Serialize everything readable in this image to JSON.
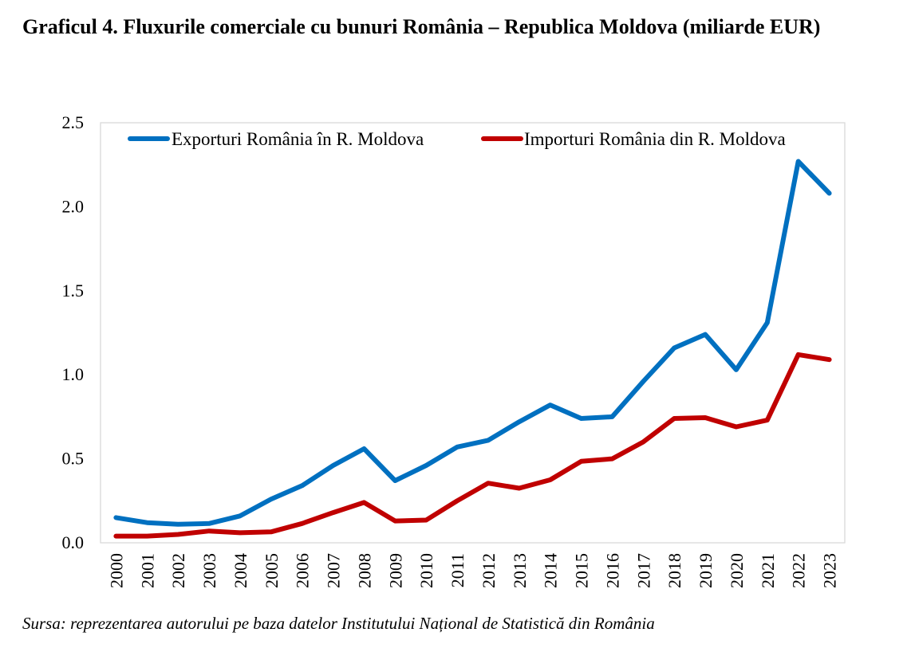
{
  "title": "Graficul 4. Fluxurile comerciale cu bunuri România – Republica Moldova (miliarde EUR)",
  "source": "Sursa: reprezentarea autorului pe baza datelor Institutului Național de Statistică din România",
  "chart_data": {
    "type": "line",
    "x": [
      "2000",
      "2001",
      "2002",
      "2003",
      "2004",
      "2005",
      "2006",
      "2007",
      "2008",
      "2009",
      "2010",
      "2011",
      "2012",
      "2013",
      "2014",
      "2015",
      "2016",
      "2017",
      "2018",
      "2019",
      "2020",
      "2021",
      "2022",
      "2023"
    ],
    "y_ticks": [
      "0.0",
      "0.5",
      "1.0",
      "1.5",
      "2.0",
      "2.5"
    ],
    "ylim": [
      0,
      2.5
    ],
    "grid": false,
    "legend_position": "top",
    "series": [
      {
        "name": "Exporturi România în R. Moldova",
        "color": "#0070C0",
        "values": [
          0.15,
          0.12,
          0.11,
          0.115,
          0.16,
          0.26,
          0.34,
          0.46,
          0.56,
          0.37,
          0.46,
          0.57,
          0.61,
          0.72,
          0.82,
          0.74,
          0.75,
          0.96,
          1.16,
          1.24,
          1.03,
          1.31,
          2.27,
          2.08
        ]
      },
      {
        "name": "Importuri România din R. Moldova",
        "color": "#C00000",
        "values": [
          0.04,
          0.04,
          0.05,
          0.07,
          0.06,
          0.065,
          0.115,
          0.18,
          0.24,
          0.13,
          0.135,
          0.25,
          0.355,
          0.325,
          0.375,
          0.485,
          0.5,
          0.6,
          0.74,
          0.745,
          0.69,
          0.73,
          1.12,
          1.09
        ]
      }
    ]
  }
}
